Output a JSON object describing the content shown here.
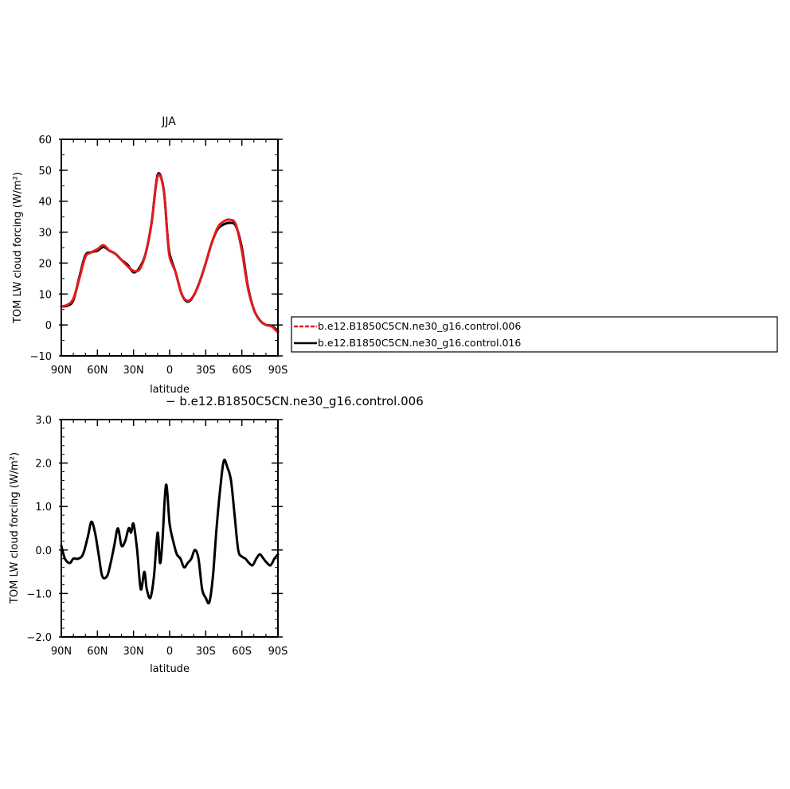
{
  "figure": {
    "diff_title": "− b.e12.B1850C5CN.ne30_g16.control.006"
  },
  "legend": {
    "entries": [
      {
        "name": "b.e12.B1850C5CN.ne30_g16.control.006",
        "color": "#e41a1c",
        "dashed": true
      },
      {
        "name": "b.e12.B1850C5CN.ne30_g16.control.016",
        "color": "#000000",
        "dashed": false
      }
    ]
  },
  "chart_data": [
    {
      "type": "line",
      "title": "JJA",
      "xlabel": "latitude",
      "ylabel": "TOM LW cloud forcing (W/m²)",
      "xlim": [
        90,
        -90
      ],
      "ylim": [
        -10,
        60
      ],
      "x_ticks": [
        90,
        60,
        30,
        0,
        -30,
        -60,
        -90
      ],
      "x_tick_labels": [
        "90N",
        "60N",
        "30N",
        "0",
        "30S",
        "60S",
        "90S"
      ],
      "y_ticks": [
        -10,
        0,
        10,
        20,
        30,
        40,
        50,
        60
      ],
      "y_tick_labels": [
        "−10",
        "0",
        "10",
        "20",
        "30",
        "40",
        "50",
        "60"
      ],
      "series": [
        {
          "name": "b.e12.B1850C5CN.ne30_g16.control.006",
          "color": "#e41a1c",
          "x": [
            90,
            85,
            80,
            75,
            70,
            65,
            60,
            55,
            50,
            45,
            40,
            35,
            30,
            25,
            20,
            15,
            10,
            5,
            2,
            0,
            -5,
            -10,
            -15,
            -20,
            -25,
            -30,
            -35,
            -40,
            -45,
            -50,
            -55,
            -60,
            -65,
            -70,
            -75,
            -80,
            -85,
            -90
          ],
          "y": [
            6.0,
            6.5,
            8.5,
            15.0,
            22.0,
            23.5,
            24.5,
            25.8,
            24.0,
            23.0,
            21.0,
            19.0,
            17.5,
            18.0,
            23.0,
            33.0,
            48.0,
            44.0,
            30.0,
            22.0,
            17.0,
            10.0,
            7.8,
            9.5,
            14.0,
            20.0,
            26.5,
            31.5,
            33.5,
            34.0,
            32.5,
            24.0,
            12.0,
            5.0,
            1.5,
            0.0,
            -0.5,
            -2.5
          ]
        },
        {
          "name": "b.e12.B1850C5CN.ne30_g16.control.016",
          "color": "#000000",
          "x": [
            90,
            85,
            80,
            75,
            70,
            65,
            60,
            55,
            50,
            45,
            40,
            35,
            30,
            25,
            20,
            15,
            10,
            5,
            2,
            0,
            -5,
            -10,
            -15,
            -20,
            -25,
            -30,
            -35,
            -40,
            -45,
            -50,
            -55,
            -60,
            -65,
            -70,
            -75,
            -80,
            -85,
            -90
          ],
          "y": [
            6.0,
            6.2,
            8.0,
            15.5,
            22.5,
            23.5,
            24.0,
            25.2,
            24.0,
            23.0,
            21.0,
            19.5,
            17.0,
            18.5,
            23.0,
            33.0,
            48.5,
            44.0,
            30.0,
            23.0,
            17.0,
            10.0,
            7.5,
            9.5,
            14.0,
            20.0,
            26.5,
            31.0,
            32.5,
            33.0,
            32.0,
            25.0,
            12.5,
            5.0,
            1.5,
            0.0,
            -0.3,
            -2.0
          ]
        }
      ]
    },
    {
      "type": "line",
      "title": "",
      "xlabel": "latitude",
      "ylabel": "TOM LW cloud forcing (W/m²)",
      "xlim": [
        90,
        -90
      ],
      "ylim": [
        -2.0,
        3.0
      ],
      "x_ticks": [
        90,
        60,
        30,
        0,
        -30,
        -60,
        -90
      ],
      "x_tick_labels": [
        "90N",
        "60N",
        "30N",
        "0",
        "30S",
        "60S",
        "90S"
      ],
      "y_ticks": [
        -2,
        -1,
        0,
        1,
        2,
        3
      ],
      "y_tick_labels": [
        "−2.0",
        "−1.0",
        "0.0",
        "1.0",
        "2.0",
        "3.0"
      ],
      "series": [
        {
          "color": "#000000",
          "x": [
            90,
            87,
            83,
            80,
            76,
            72,
            68,
            65,
            62,
            59,
            56,
            52,
            49,
            46,
            43,
            40,
            37,
            34,
            32,
            30,
            27,
            24,
            21,
            19,
            16,
            13,
            10,
            8,
            6,
            3,
            0,
            -3,
            -6,
            -9,
            -12,
            -15,
            -18,
            -21,
            -24,
            -27,
            -30,
            -33,
            -36,
            -39,
            -42,
            -45,
            -48,
            -51,
            -54,
            -57,
            -60,
            -63,
            -66,
            -69,
            -72,
            -75,
            -78,
            -81,
            -84,
            -87,
            -90
          ],
          "y": [
            0.1,
            -0.2,
            -0.3,
            -0.2,
            -0.2,
            -0.1,
            0.3,
            0.65,
            0.4,
            -0.1,
            -0.6,
            -0.6,
            -0.3,
            0.1,
            0.5,
            0.1,
            0.2,
            0.5,
            0.4,
            0.6,
            0.0,
            -0.9,
            -0.5,
            -0.9,
            -1.1,
            -0.6,
            0.4,
            -0.3,
            0.2,
            1.5,
            0.6,
            0.2,
            -0.1,
            -0.2,
            -0.4,
            -0.3,
            -0.2,
            0.0,
            -0.2,
            -0.9,
            -1.1,
            -1.2,
            -0.6,
            0.5,
            1.4,
            2.05,
            1.9,
            1.6,
            0.8,
            0.0,
            -0.15,
            -0.2,
            -0.3,
            -0.35,
            -0.2,
            -0.1,
            -0.2,
            -0.3,
            -0.35,
            -0.2,
            -0.1
          ]
        }
      ]
    }
  ]
}
